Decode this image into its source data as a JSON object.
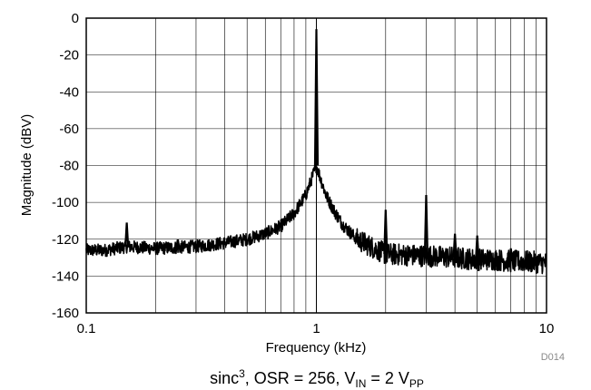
{
  "chart_data": {
    "type": "line",
    "title": "",
    "xlabel": "Frequency (kHz)",
    "ylabel": "Magnitude (dBV)",
    "xscale": "log",
    "xlim": [
      0.1,
      10
    ],
    "ylim": [
      -160,
      0
    ],
    "x_ticks": [
      0.1,
      1,
      10
    ],
    "x_tick_labels": [
      "0.1",
      "1",
      "10"
    ],
    "y_ticks": [
      0,
      -20,
      -40,
      -60,
      -80,
      -100,
      -120,
      -140,
      -160
    ],
    "y_tick_labels": [
      "0",
      "-20",
      "-40",
      "-60",
      "-80",
      "-100",
      "-120",
      "-140",
      "-160"
    ],
    "grid": true,
    "series_color": "#000000",
    "noise_floor": {
      "x": [
        0.1,
        0.12,
        0.15,
        0.2,
        0.3,
        0.4,
        0.5,
        0.6,
        0.7,
        0.8,
        0.9,
        1.0,
        1.1,
        1.2,
        1.3,
        1.5,
        2.0,
        3.0,
        4.0,
        5.0,
        6.0,
        7.0,
        8.0,
        10.0
      ],
      "y": [
        -126,
        -126,
        -124,
        -125,
        -124,
        -122,
        -120,
        -117,
        -113,
        -106,
        -96,
        -80,
        -96,
        -105,
        -112,
        -120,
        -128,
        -129,
        -130,
        -131,
        -131,
        -132,
        -132,
        -133
      ]
    },
    "peaks": {
      "x": [
        0.15,
        0.25,
        1.0,
        2.0,
        3.0,
        4.0,
        5.0,
        7.0
      ],
      "y": [
        -111,
        -120,
        -6,
        -104,
        -96,
        -117,
        -118,
        -125
      ]
    },
    "annotations": {
      "figure_id": "D014",
      "caption": {
        "prefix": "sinc",
        "sup": "3",
        "mid": ", OSR = 256, V",
        "sub1": "IN",
        "eq": " = 2 V",
        "sub2": "PP"
      }
    }
  }
}
